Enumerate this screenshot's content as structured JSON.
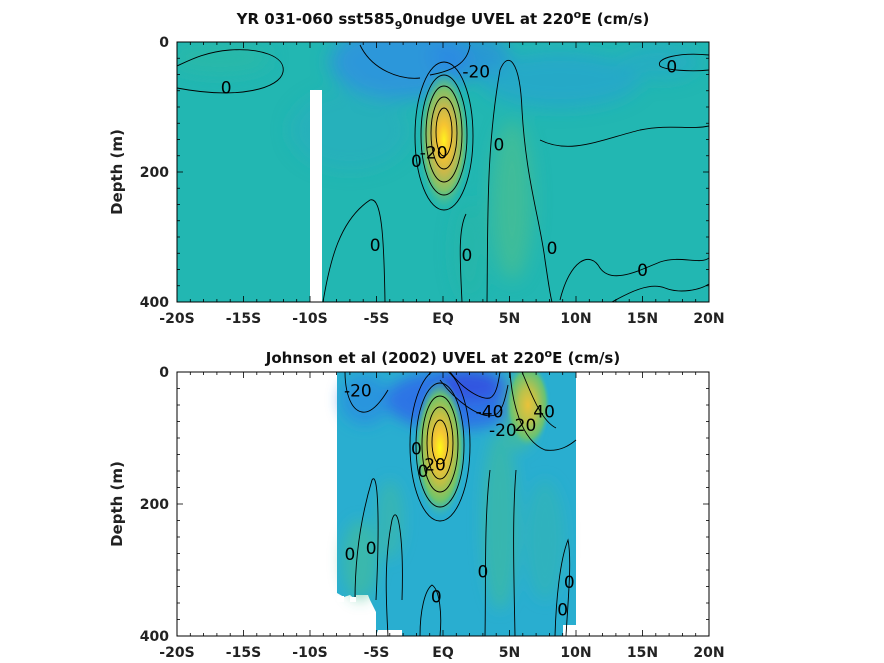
{
  "chart_data": [
    {
      "type": "heatmap",
      "title_main": "YR 031-060 sst585",
      "title_sub": "9",
      "title_rest": "0nudge UVEL at 220",
      "title_sup": "o",
      "title_end": "E (cm/s)",
      "xlabel": "",
      "ylabel": "Depth (m)",
      "x_ticks": [
        "-20S",
        "-15S",
        "-10S",
        "-5S",
        "EQ",
        "5N",
        "10N",
        "15N",
        "20N"
      ],
      "y_ticks": [
        "0",
        "200",
        "400"
      ],
      "xlim": [
        -20,
        20
      ],
      "ylim": [
        0,
        400
      ],
      "contour_labels": [
        {
          "text": "-20",
          "lat": 2.5,
          "depth": 45
        },
        {
          "text": "0",
          "lat": -16.3,
          "depth": 70
        },
        {
          "text": "0",
          "lat": 17.2,
          "depth": 38
        },
        {
          "text": "0",
          "lat": 4.2,
          "depth": 158
        },
        {
          "text": "-20",
          "lat": -0.7,
          "depth": 170
        },
        {
          "text": "0",
          "lat": -2.0,
          "depth": 183
        },
        {
          "text": "0",
          "lat": -5.1,
          "depth": 312
        },
        {
          "text": "0",
          "lat": 1.8,
          "depth": 328
        },
        {
          "text": "0",
          "lat": 8.2,
          "depth": 317
        },
        {
          "text": "0",
          "lat": 15.0,
          "depth": 351
        }
      ]
    },
    {
      "type": "heatmap",
      "title_main": "Johnson et al (2002) UVEL at 220",
      "title_sup": "o",
      "title_end": "E (cm/s)",
      "xlabel": "",
      "ylabel": "Depth (m)",
      "x_ticks": [
        "-20S",
        "-15S",
        "-10S",
        "-5S",
        "EQ",
        "5N",
        "10N",
        "15N",
        "20N"
      ],
      "y_ticks": [
        "0",
        "200",
        "400"
      ],
      "xlim": [
        -20,
        20
      ],
      "ylim": [
        0,
        400
      ],
      "contour_labels": [
        {
          "text": "-20",
          "lat": -6.4,
          "depth": 28
        },
        {
          "text": "-40",
          "lat": 3.5,
          "depth": 60
        },
        {
          "text": "-20",
          "lat": 4.5,
          "depth": 88
        },
        {
          "text": "20",
          "lat": 6.2,
          "depth": 80
        },
        {
          "text": "40",
          "lat": 7.6,
          "depth": 60
        },
        {
          "text": "0",
          "lat": -2.0,
          "depth": 116
        },
        {
          "text": "20",
          "lat": -0.6,
          "depth": 140
        },
        {
          "text": "0",
          "lat": -1.5,
          "depth": 150
        },
        {
          "text": "0",
          "lat": -7.0,
          "depth": 276
        },
        {
          "text": "0",
          "lat": -5.4,
          "depth": 267
        },
        {
          "text": "0",
          "lat": 3.0,
          "depth": 302
        },
        {
          "text": "0",
          "lat": 9.5,
          "depth": 318
        },
        {
          "text": "0",
          "lat": -0.5,
          "depth": 340
        },
        {
          "text": "0",
          "lat": 9.0,
          "depth": 360
        }
      ]
    }
  ]
}
